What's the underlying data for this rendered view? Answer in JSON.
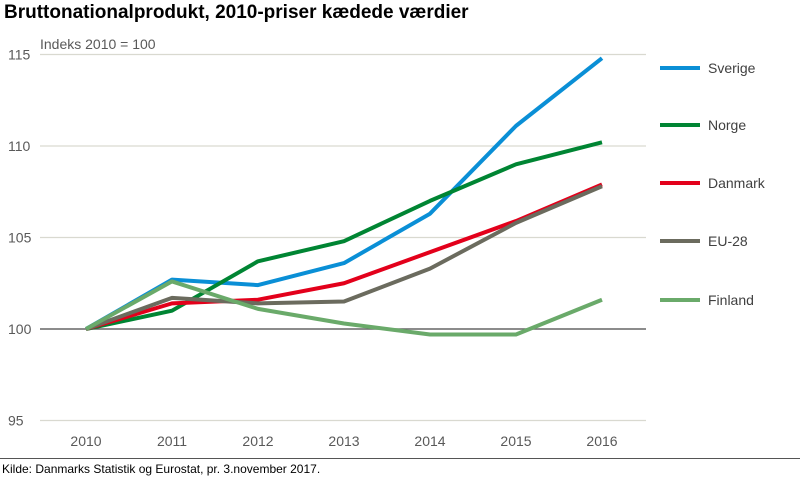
{
  "chart_data": {
    "type": "line",
    "title": "Bruttonationalprodukt, 2010-priser kædede værdier",
    "annotation": "Indeks 2010 = 100",
    "source": "Kilde: Danmarks Statistik og Eurostat, pr. 3.november 2017.",
    "x": [
      "2010",
      "2011",
      "2012",
      "2013",
      "2014",
      "2015",
      "2016"
    ],
    "ylim": [
      95,
      115
    ],
    "yticks": [
      95,
      100,
      105,
      110,
      115
    ],
    "grid": true,
    "legend": "right",
    "series": [
      {
        "name": "Sverige",
        "color": "#0a8fd6",
        "values": [
          100,
          102.7,
          102.4,
          103.6,
          106.3,
          111.1,
          114.8
        ]
      },
      {
        "name": "Norge",
        "color": "#008533",
        "values": [
          100,
          101.0,
          103.7,
          104.8,
          107.0,
          109.0,
          110.2
        ]
      },
      {
        "name": "Danmark",
        "color": "#e3001b",
        "values": [
          100,
          101.4,
          101.6,
          102.5,
          104.2,
          105.9,
          107.9
        ]
      },
      {
        "name": "EU-28",
        "color": "#6b6b5e",
        "values": [
          100,
          101.7,
          101.4,
          101.5,
          103.3,
          105.8,
          107.8
        ]
      },
      {
        "name": "Finland",
        "color": "#6aaa6a",
        "values": [
          100,
          102.6,
          101.1,
          100.3,
          99.7,
          99.7,
          101.6
        ]
      }
    ]
  }
}
